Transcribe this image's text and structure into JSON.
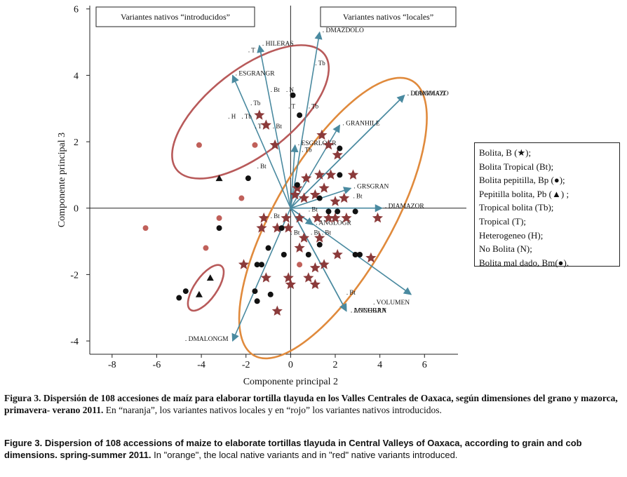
{
  "colors": {
    "arrow": "#4a8aa0",
    "star": "#8b3a3a",
    "circle_black": "#111111",
    "circle_red": "#c0605a",
    "ellipse_orange": "#e08a3c",
    "ellipse_red": "#b85a5a"
  },
  "chart_data": {
    "type": "scatter",
    "xlabel": "Componente principal 2",
    "ylabel": "Componente principal 3",
    "xlim": [
      -9,
      7.5
    ],
    "ylim": [
      -4.4,
      6.1
    ],
    "xticks": [
      -8,
      -6,
      -4,
      -2,
      0,
      2,
      4,
      6
    ],
    "yticks": [
      -4,
      -2,
      0,
      2,
      4,
      6
    ],
    "group_boxes": [
      {
        "label": "Variantes nativos  “introducidos”"
      },
      {
        "label": "Variantes nativos  “locales”"
      }
    ],
    "vectors": [
      {
        "name": "DMAZDOLO",
        "x": 1.3,
        "y": 5.3
      },
      {
        "name": "HILERAS",
        "x": -1.4,
        "y": 4.9
      },
      {
        "name": "ESGRANGR",
        "x": -2.6,
        "y": 4.0
      },
      {
        "name": "DIAMOLOT",
        "x": 5.1,
        "y": 3.4
      },
      {
        "name": "LONGMAZO",
        "x": 5.1,
        "y": 3.4
      },
      {
        "name": "GRANHILE",
        "x": 2.2,
        "y": 2.5
      },
      {
        "name": "ESGRLOGR",
        "x": 0.2,
        "y": 1.9
      },
      {
        "name": "GRSGRAN",
        "x": 2.7,
        "y": 0.6
      },
      {
        "name": "DIAMAZOR",
        "x": 4.1,
        "y": 0.0
      },
      {
        "name": "ANGLOGR",
        "x": 1.0,
        "y": -0.5
      },
      {
        "name": "VOLUMEN",
        "x": 5.4,
        "y": -2.6
      },
      {
        "name": "LONGRAN",
        "x": 2.5,
        "y": -3.1
      },
      {
        "name": "ANCHGRA",
        "x": 2.5,
        "y": -3.1
      },
      {
        "name": "DMALONGM",
        "x": -2.6,
        "y": -4.0
      }
    ],
    "point_labels": [
      {
        "text": "T",
        "x": -1.9,
        "y": 4.7
      },
      {
        "text": "Tb",
        "x": 1.1,
        "y": 4.3
      },
      {
        "text": "Bt",
        "x": -0.9,
        "y": 3.5
      },
      {
        "text": "N",
        "x": -0.2,
        "y": 3.5
      },
      {
        "text": "Tb",
        "x": -1.8,
        "y": 3.1
      },
      {
        "text": "T",
        "x": -0.1,
        "y": 3.0
      },
      {
        "text": "Tb",
        "x": 0.8,
        "y": 3.0
      },
      {
        "text": "H",
        "x": -2.8,
        "y": 2.7
      },
      {
        "text": "Tb",
        "x": -2.2,
        "y": 2.7
      },
      {
        "text": "T",
        "x": -1.6,
        "y": 2.4
      },
      {
        "text": "Bt",
        "x": -0.8,
        "y": 2.4
      },
      {
        "text": "Tb",
        "x": 0.5,
        "y": 1.7
      },
      {
        "text": "Bt",
        "x": -1.5,
        "y": 1.2
      },
      {
        "text": "Bt",
        "x": 2.8,
        "y": 0.3
      },
      {
        "text": "Bt",
        "x": -0.9,
        "y": -0.3
      },
      {
        "text": "Bt",
        "x": 0.8,
        "y": -0.1
      },
      {
        "text": "Bt",
        "x": 0.0,
        "y": -0.8
      },
      {
        "text": "Bt",
        "x": 0.9,
        "y": -0.8
      },
      {
        "text": "Bt",
        "x": 1.4,
        "y": -0.8
      },
      {
        "text": "Bt",
        "x": 2.5,
        "y": -2.6
      }
    ],
    "series": [
      {
        "name": "Bolita, B (★)",
        "marker": "star",
        "points": [
          [
            -1.4,
            2.8
          ],
          [
            -1.1,
            2.5
          ],
          [
            -0.7,
            1.9
          ],
          [
            1.4,
            2.2
          ],
          [
            1.7,
            1.9
          ],
          [
            2.1,
            1.6
          ],
          [
            0.7,
            0.9
          ],
          [
            1.3,
            1.0
          ],
          [
            1.8,
            1.0
          ],
          [
            2.8,
            1.0
          ],
          [
            0.3,
            0.6
          ],
          [
            0.6,
            0.3
          ],
          [
            1.1,
            0.4
          ],
          [
            1.5,
            0.6
          ],
          [
            2.0,
            0.2
          ],
          [
            2.4,
            0.3
          ],
          [
            -1.2,
            -0.3
          ],
          [
            -1.3,
            -0.6
          ],
          [
            -0.6,
            -0.6
          ],
          [
            -0.2,
            -0.3
          ],
          [
            0.4,
            -0.3
          ],
          [
            1.2,
            -0.3
          ],
          [
            1.7,
            -0.3
          ],
          [
            2.0,
            -0.3
          ],
          [
            2.5,
            -0.3
          ],
          [
            3.9,
            -0.3
          ],
          [
            -0.1,
            -0.6
          ],
          [
            0.6,
            -0.9
          ],
          [
            1.3,
            -0.9
          ],
          [
            0.4,
            -1.2
          ],
          [
            2.1,
            -1.4
          ],
          [
            3.6,
            -1.5
          ],
          [
            -2.1,
            -1.7
          ],
          [
            1.1,
            -1.8
          ],
          [
            1.5,
            -1.7
          ],
          [
            -1.1,
            -2.1
          ],
          [
            -0.1,
            -2.1
          ],
          [
            0.8,
            -2.1
          ],
          [
            0.0,
            -2.3
          ],
          [
            1.1,
            -2.3
          ],
          [
            -0.6,
            -3.1
          ],
          [
            0.2,
            0.4
          ]
        ]
      },
      {
        "name": "Bolita pepitilla, Bp (●)",
        "marker": "circle_black",
        "points": [
          [
            0.1,
            3.4
          ],
          [
            0.4,
            2.8
          ],
          [
            2.2,
            1.8
          ],
          [
            0.3,
            0.7
          ],
          [
            -1.9,
            0.9
          ],
          [
            -3.2,
            -0.6
          ],
          [
            -4.7,
            -2.5
          ],
          [
            2.2,
            1.0
          ],
          [
            1.3,
            0.3
          ],
          [
            1.7,
            -0.1
          ],
          [
            2.1,
            -0.1
          ],
          [
            2.9,
            -0.1
          ],
          [
            -0.4,
            -0.6
          ],
          [
            -1.0,
            -1.2
          ],
          [
            -0.3,
            -1.4
          ],
          [
            0.8,
            -1.4
          ],
          [
            1.3,
            -1.1
          ],
          [
            2.9,
            -1.4
          ],
          [
            3.1,
            -1.4
          ],
          [
            -1.5,
            -1.7
          ],
          [
            -1.3,
            -1.7
          ],
          [
            -1.6,
            -2.5
          ],
          [
            -0.9,
            -2.6
          ],
          [
            -1.5,
            -2.8
          ],
          [
            -5.0,
            -2.7
          ]
        ]
      },
      {
        "name": "Pepitilla bolita, Pb (▲)",
        "marker": "triangle",
        "points": [
          [
            -3.2,
            0.9
          ],
          [
            -3.6,
            -2.1
          ],
          [
            -4.1,
            -2.6
          ]
        ]
      },
      {
        "name": "Bolita mal dado, Bm (●)",
        "marker": "circle_red",
        "points": [
          [
            -4.1,
            1.9
          ],
          [
            -1.6,
            1.9
          ],
          [
            -2.2,
            0.3
          ],
          [
            -3.2,
            -0.3
          ],
          [
            -6.5,
            -0.6
          ],
          [
            -3.8,
            -1.2
          ],
          [
            0.4,
            -1.7
          ]
        ]
      }
    ],
    "ellipses": [
      {
        "group": "locales",
        "color": "orange",
        "cx": 1.9,
        "cy": -0.3,
        "rx": 7.1,
        "ry": 2.6,
        "angle_deg": 60
      },
      {
        "group": "introducidos",
        "color": "red",
        "cx": -1.8,
        "cy": 2.9,
        "rx": 4.2,
        "ry": 1.9,
        "angle_deg": 38
      },
      {
        "group": "Pb",
        "color": "red",
        "cx": -3.8,
        "cy": -2.4,
        "rx": 1.2,
        "ry": 0.5,
        "angle_deg": 55
      }
    ]
  },
  "legend": [
    "Bolita, B (★);",
    "Bolita Tropical (Bt);",
    "Bolita pepitilla, Bp (●);",
    "Pepitilla bolita, Pb (▲) ;",
    "Tropical bolita (Tb);",
    "Tropical (T);",
    "Heterogeneo (H);",
    "No Bolita (N);",
    "Bolita mal dado, Bm(●)."
  ],
  "caption": {
    "es_num": "Figura 3.",
    "es_bold": "Dispersión de 108 accesiones de maíz para elaborar tortilla tlayuda en los Valles Centrales de Oaxaca, según dimensiones del grano y mazorca, primavera- verano 2011.",
    "es_rest": "En “naranja”, los variantes nativos locales y en “rojo” los variantes nativos introducidos.",
    "en_num": "Figure 3.",
    "en_bold": "Dispersion of 108 accessions of maize to elaborate tortillas tlayuda in Central Valleys of Oaxaca, according to grain and cob dimensions. spring-summer 2011.",
    "en_rest": "In \"orange\", the local native variants and in \"red\" native variants introduced."
  }
}
